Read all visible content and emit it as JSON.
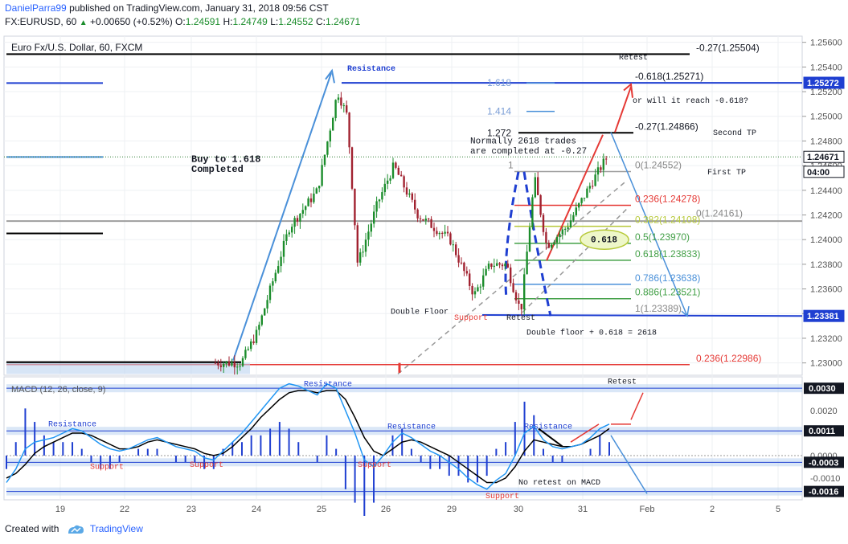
{
  "header": {
    "publisher": "DanielParra99",
    "published_text": "published on TradingView.com, January 31, 2018 09:56 CST",
    "symbol": "FX:EURUSD, 60",
    "open_label": "O:",
    "open": "1.24671",
    "change": "+0.00650 (+0.52%)",
    "o_label": "O:",
    "o": "1.24591",
    "h_label": "H:",
    "h": "1.24749",
    "l_label": "L:",
    "l": "1.24552",
    "c_label": "C:",
    "c": "1.24671"
  },
  "footer": {
    "created_with": "Created with",
    "brand": "TradingView"
  },
  "colors": {
    "up": "#1c8d2c",
    "down": "#a12230",
    "blue": "#1f3fd1",
    "lightblue": "#4a90d9",
    "red": "#e53935",
    "green": "#43a047",
    "gray": "#9e9e9e",
    "macd": "#2196f3",
    "signal": "#000000"
  },
  "chart_data": [
    {
      "type": "candlestick",
      "title": "Euro Fx/U.S. Dollar, 60, FXCM",
      "x_ticks": [
        "19",
        "22",
        "23",
        "24",
        "25",
        "26",
        "29",
        "30",
        "31",
        "Feb",
        "2",
        "5"
      ],
      "y_ticks": [
        "1.25600",
        "1.25400",
        "1.25200",
        "1.25000",
        "1.24800",
        "1.24600",
        "1.24400",
        "1.24200",
        "1.24000",
        "1.23800",
        "1.23600",
        "1.23400",
        "1.23200",
        "1.23000"
      ],
      "ylim": [
        1.229,
        1.2565
      ],
      "price_badges": [
        {
          "value": "1.25272",
          "kind": "level"
        },
        {
          "value": "1.24671",
          "kind": "last"
        },
        {
          "value": "04:00",
          "kind": "countdown"
        },
        {
          "value": "1.23381",
          "kind": "level"
        }
      ],
      "fib_extension_labels": [
        {
          "text": "-0.27(1.25504)",
          "price": 1.25504
        },
        {
          "text": "-0.618(1.25271)",
          "price": 1.25271
        },
        {
          "text": "1.618",
          "price": 1.25271
        },
        {
          "text": "1.414",
          "price": 1.2504
        },
        {
          "text": "1.272",
          "price": 1.24866
        },
        {
          "text": "-0.27(1.24866)",
          "price": 1.24866
        },
        {
          "text": "0(1.24552)",
          "price": 1.24552
        },
        {
          "text": "1",
          "price": 1.24552
        },
        {
          "text": "0.236(1.24278)",
          "price": 1.24278
        },
        {
          "text": "0.382(1.24108)",
          "price": 1.24108
        },
        {
          "text": "0(1.24161)",
          "price": 1.24161
        },
        {
          "text": "0.5(1.23970)",
          "price": 1.2397
        },
        {
          "text": "0.618(1.23833)",
          "price": 1.23833
        },
        {
          "text": "0.786(1.23638)",
          "price": 1.23638
        },
        {
          "text": "0.886(1.23521)",
          "price": 1.23521
        },
        {
          "text": "1(1.23389)",
          "price": 1.23389
        },
        {
          "text": "0.236(1.22986)",
          "price": 1.22986
        }
      ],
      "annotations": [
        {
          "text": "Resistance"
        },
        {
          "text": "Retest"
        },
        {
          "text": "or will it reach -0.618?"
        },
        {
          "text": "Second TP"
        },
        {
          "text": "Normally 2618 trades"
        },
        {
          "text": "are completed at -0.27"
        },
        {
          "text": "Buy to 1.618"
        },
        {
          "text": "Completed"
        },
        {
          "text": "First TP"
        },
        {
          "text": "0.618"
        },
        {
          "text": "Double Floor"
        },
        {
          "text": "Support"
        },
        {
          "text": "Retest"
        },
        {
          "text": "Double floor + 0.618 = 2618"
        }
      ]
    },
    {
      "type": "line",
      "title": "MACD (12, 26, close, 9)",
      "y_ticks": [
        "0.0030",
        "0.0020",
        "0.0010",
        "0.0000",
        "-0.0010"
      ],
      "ylim": [
        -0.0019,
        0.0034
      ],
      "level_badges": [
        "0.0030",
        "0.0011",
        "-0.0003",
        "-0.0016"
      ],
      "series": [
        {
          "values": [
            -0.0012,
            -0.0006,
            0.0003,
            0.0006,
            0.0007,
            0.0008,
            0.001,
            0.0012,
            0.0011,
            0.0008,
            0.0005,
            0.0003,
            0.0002,
            0.0003,
            0.0005,
            0.0007,
            0.0008,
            0.0006,
            0.0004,
            0.0003,
            0.0002,
            -0.0001,
            -0.0002,
            0.0002,
            0.0006,
            0.001,
            0.0015,
            0.002,
            0.0025,
            0.003,
            0.0032,
            0.0031,
            0.0029,
            0.0027,
            0.0032,
            0.003,
            0.002,
            0.001,
            -0.0002,
            -0.0005,
            0.0,
            0.0006,
            0.001,
            0.0008,
            0.0005,
            0.0002,
            0.0,
            -0.0003,
            -0.0006,
            -0.001,
            -0.0013,
            -0.0015,
            -0.0011,
            -0.0008,
            0.0,
            0.001,
            0.0013,
            0.0007,
            0.0004,
            0.0003,
            0.0004,
            0.0005,
            0.0008,
            0.0012,
            0.0014
          ]
        },
        {
          "values": [
            -0.001,
            -0.0008,
            -0.0004,
            0.0001,
            0.0004,
            0.0006,
            0.0008,
            0.001,
            0.001,
            0.0009,
            0.0007,
            0.0005,
            0.0003,
            0.0003,
            0.0004,
            0.0006,
            0.0007,
            0.0006,
            0.0005,
            0.0004,
            0.0003,
            0.0001,
            0.0,
            0.0001,
            0.0004,
            0.0008,
            0.0012,
            0.0017,
            0.0021,
            0.0025,
            0.0028,
            0.0029,
            0.0029,
            0.0028,
            0.0029,
            0.0029,
            0.0025,
            0.0017,
            0.0008,
            0.0002,
            0.0,
            0.0003,
            0.0006,
            0.0007,
            0.0006,
            0.0004,
            0.0002,
            0.0,
            -0.0003,
            -0.0006,
            -0.0009,
            -0.0012,
            -0.0012,
            -0.001,
            -0.0005,
            0.0002,
            0.0007,
            0.0006,
            0.0005,
            0.0004,
            0.0004,
            0.0005,
            0.0007,
            0.0009,
            0.0012
          ]
        }
      ],
      "annotations": [
        {
          "text": "Resistance"
        },
        {
          "text": "Resistance"
        },
        {
          "text": "Resistance"
        },
        {
          "text": "Resistance"
        },
        {
          "text": "Support"
        },
        {
          "text": "Support"
        },
        {
          "text": "Support"
        },
        {
          "text": "Support"
        },
        {
          "text": "Retest"
        },
        {
          "text": "No retest on MACD"
        }
      ]
    }
  ]
}
